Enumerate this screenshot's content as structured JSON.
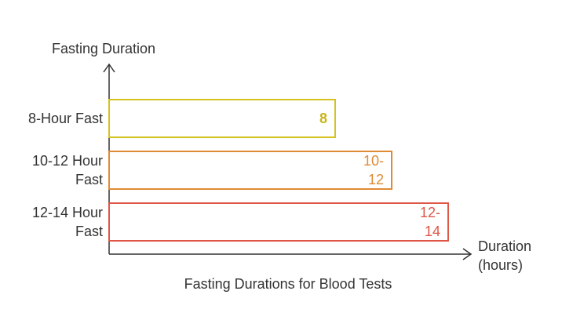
{
  "chart_data": {
    "type": "bar",
    "orientation": "horizontal",
    "title": "Fasting Durations for Blood Tests",
    "ylabel": "Fasting Duration",
    "xlabel_lines": [
      "Duration",
      "(hours)"
    ],
    "xlim": [
      0,
      15
    ],
    "grid": false,
    "legend": "none",
    "categories": [
      {
        "label_lines": [
          "8-Hour Fast"
        ],
        "value": 8,
        "value_label_lines": [
          "8"
        ],
        "color": "#d4c21f",
        "text_color": "#c8b41c",
        "bold": true
      },
      {
        "label_lines": [
          "10-12 Hour",
          "Fast"
        ],
        "value": 10,
        "value_label_lines": [
          "10-",
          "12"
        ],
        "color": "#e08a35",
        "text_color": "#e08a35",
        "bold": false
      },
      {
        "label_lines": [
          "12-14 Hour",
          "Fast"
        ],
        "value": 12,
        "value_label_lines": [
          "12-",
          "14"
        ],
        "color": "#de5646",
        "text_color": "#de5646",
        "bold": false
      }
    ],
    "axis_color": "#333333"
  }
}
